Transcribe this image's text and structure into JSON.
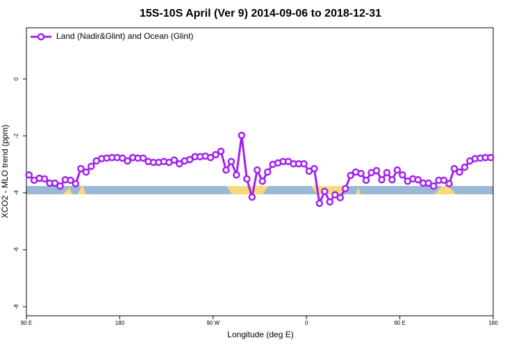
{
  "chart_data": {
    "type": "line",
    "title": "15S-10S April (Ver 9)   2014-09-06 to 2018-12-31",
    "x_label": "Longitude (deg E)",
    "y_label": "XCO2 - MLO trend (ppm)",
    "x": [
      92.5,
      97.5,
      102.5,
      107.5,
      112.5,
      117.5,
      122.5,
      127.5,
      132.5,
      137.5,
      142.5,
      147.5,
      152.5,
      157.5,
      162.5,
      167.5,
      172.5,
      177.5,
      182.5,
      187.5,
      192.5,
      197.5,
      202.5,
      207.5,
      212.5,
      217.5,
      222.5,
      227.5,
      232.5,
      237.5,
      242.5,
      247.5,
      252.5,
      257.5,
      262.5,
      267.5,
      272.5,
      277.5,
      282.5,
      287.5,
      292.5,
      297.5,
      302.5,
      307.5,
      312.5,
      317.5,
      322.5,
      327.5,
      332.5,
      337.5,
      342.5,
      347.5,
      352.5,
      357.5,
      362.5,
      367.5,
      372.5,
      377.5,
      382.5,
      387.5,
      392.5,
      397.5,
      402.5,
      407.5,
      412.5,
      417.5,
      422.5,
      427.5,
      432.5,
      437.5,
      442.5,
      447.5,
      452.5,
      457.5,
      462.5,
      467.5,
      472.5,
      477.5,
      482.5,
      487.5,
      492.5,
      497.5,
      502.5,
      507.5,
      512.5,
      517.5,
      522.5,
      527.5,
      532.5,
      537.5
    ],
    "series": [
      {
        "name": "Land (Nadir&Glint) and Ocean (Glint)",
        "color": "#a020f0",
        "values": [
          -3.37,
          -3.56,
          -3.49,
          -3.51,
          -3.66,
          -3.66,
          -3.76,
          -3.54,
          -3.56,
          -3.68,
          -3.15,
          -3.27,
          -3.07,
          -2.88,
          -2.8,
          -2.78,
          -2.76,
          -2.76,
          -2.78,
          -2.88,
          -2.76,
          -2.78,
          -2.78,
          -2.9,
          -2.93,
          -2.93,
          -2.9,
          -2.93,
          -2.85,
          -2.98,
          -2.88,
          -2.83,
          -2.73,
          -2.73,
          -2.71,
          -2.76,
          -2.66,
          -2.54,
          -3.2,
          -2.9,
          -3.37,
          -1.98,
          -3.51,
          -4.15,
          -3.2,
          -3.59,
          -3.27,
          -3.0,
          -2.95,
          -2.9,
          -2.9,
          -2.98,
          -2.98,
          -2.98,
          -3.24,
          -3.15,
          -4.37,
          -3.95,
          -4.32,
          -4.07,
          -4.17,
          -3.85,
          -3.39,
          -3.27,
          -3.32,
          -3.56,
          -3.29,
          -3.22,
          -3.54,
          -3.29,
          -3.54,
          -3.2,
          -3.37,
          -3.59,
          -3.51,
          -3.54,
          -3.66,
          -3.66,
          -3.76,
          -3.56,
          -3.56,
          -3.68,
          -3.15,
          -3.27,
          -3.1,
          -2.88,
          -2.8,
          -2.78,
          -2.76,
          -2.76
        ]
      }
    ],
    "xlim": [
      90,
      540
    ],
    "xticks": [
      {
        "value": 90,
        "label": "90 E"
      },
      180,
      {
        "value": 270,
        "label": "90 W"
      },
      {
        "value": 360,
        "label": "0"
      },
      {
        "value": 450,
        "label": "90 E"
      },
      {
        "value": 540,
        "label": "180"
      }
    ],
    "ylim": [
      -8.32,
      1.8
    ],
    "yticks": [
      -8,
      -6,
      -4,
      -2,
      0
    ],
    "legend": "top-left"
  }
}
